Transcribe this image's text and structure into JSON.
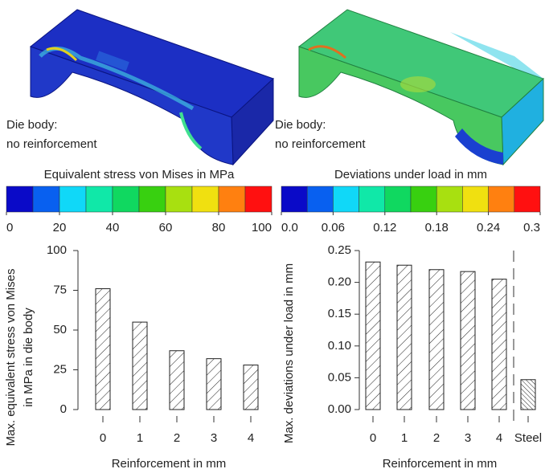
{
  "panels": [
    {
      "caption": [
        "Die body:",
        "no reinforcement"
      ],
      "colorbar": {
        "title": "Equivalent stress von Mises in MPa",
        "lim": [
          0,
          100
        ],
        "ticks": [
          0,
          20,
          40,
          60,
          80,
          100
        ],
        "colors": [
          "#0a0ac8",
          "#0860f0",
          "#10d8f8",
          "#10e8a8",
          "#10d860",
          "#38d010",
          "#a8e010",
          "#f0e010",
          "#ff8010",
          "#ff1010"
        ]
      }
    },
    {
      "caption": [
        "Die body:",
        "no reinforcement"
      ],
      "colorbar": {
        "title": "Deviations under load in mm",
        "lim": [
          0,
          0.3
        ],
        "ticks": [
          {
            "value": 0,
            "label": "0.0"
          },
          0.06,
          0.12,
          0.18,
          0.24,
          0.3
        ],
        "colors": [
          "#0a0ac8",
          "#0860f0",
          "#10d8f8",
          "#10e8a8",
          "#10d860",
          "#38d010",
          "#a8e010",
          "#f0e010",
          "#ff8010",
          "#ff1010"
        ]
      }
    }
  ],
  "chart_data": [
    {
      "type": "bar",
      "ylabel": [
        "Max. equivalent stress von Mises",
        "in MPa in die body"
      ],
      "xlabel": "Reinforcement in mm",
      "categories": [
        "0",
        "1",
        "2",
        "3",
        "4"
      ],
      "values": [
        76,
        55,
        37,
        32,
        28
      ],
      "ylim": [
        0,
        100
      ],
      "yticks": [
        0,
        25,
        50,
        75,
        100
      ]
    },
    {
      "type": "bar",
      "ylabel": [
        "Max. deviations under load in mm"
      ],
      "xlabel": "Reinforcement in mm",
      "categories": [
        "0",
        "1",
        "2",
        "3",
        "4",
        "Steel"
      ],
      "values": [
        0.232,
        0.227,
        0.22,
        0.217,
        0.205,
        0.047
      ],
      "ylim": [
        0,
        0.25
      ],
      "yticks": [
        {
          "value": 0,
          "label": "0.00"
        },
        {
          "value": 0.05,
          "label": "0.05"
        },
        {
          "value": 0.1,
          "label": "0.10"
        },
        {
          "value": 0.15,
          "label": "0.15"
        },
        {
          "value": 0.2,
          "label": "0.20"
        },
        {
          "value": 0.25,
          "label": "0.25"
        }
      ]
    }
  ]
}
